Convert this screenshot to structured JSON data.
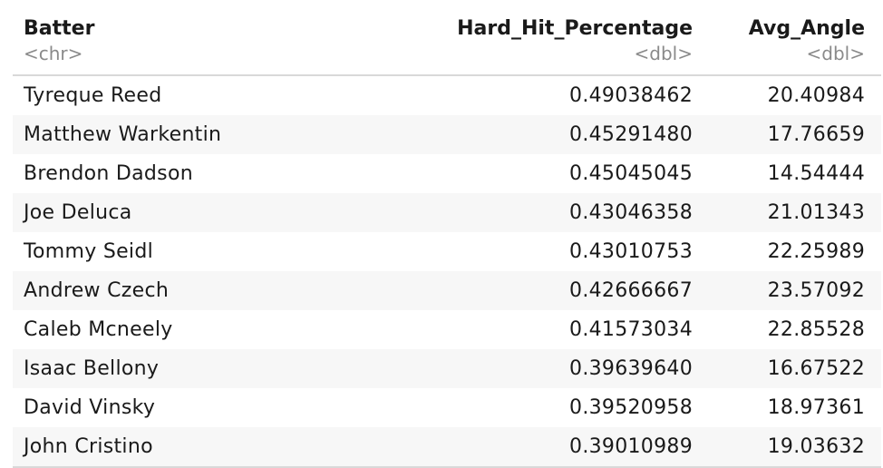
{
  "table": {
    "columns": [
      {
        "name": "Batter",
        "type": "<chr>"
      },
      {
        "name": "Hard_Hit_Percentage",
        "type": "<dbl>"
      },
      {
        "name": "Avg_Angle",
        "type": "<dbl>"
      }
    ],
    "rows": [
      {
        "batter": "Tyreque Reed",
        "hard_hit": "0.49038462",
        "avg_angle": "20.40984"
      },
      {
        "batter": "Matthew Warkentin",
        "hard_hit": "0.45291480",
        "avg_angle": "17.76659"
      },
      {
        "batter": "Brendon Dadson",
        "hard_hit": "0.45045045",
        "avg_angle": "14.54444"
      },
      {
        "batter": "Joe Deluca",
        "hard_hit": "0.43046358",
        "avg_angle": "21.01343"
      },
      {
        "batter": "Tommy Seidl",
        "hard_hit": "0.43010753",
        "avg_angle": "22.25989"
      },
      {
        "batter": "Andrew Czech",
        "hard_hit": "0.42666667",
        "avg_angle": "23.57092"
      },
      {
        "batter": "Caleb Mcneely",
        "hard_hit": "0.41573034",
        "avg_angle": "22.85528"
      },
      {
        "batter": "Isaac Bellony",
        "hard_hit": "0.39639640",
        "avg_angle": "16.67522"
      },
      {
        "batter": "David Vinsky",
        "hard_hit": "0.39520958",
        "avg_angle": "18.97361"
      },
      {
        "batter": "John Cristino",
        "hard_hit": "0.39010989",
        "avg_angle": "19.03632"
      }
    ]
  }
}
